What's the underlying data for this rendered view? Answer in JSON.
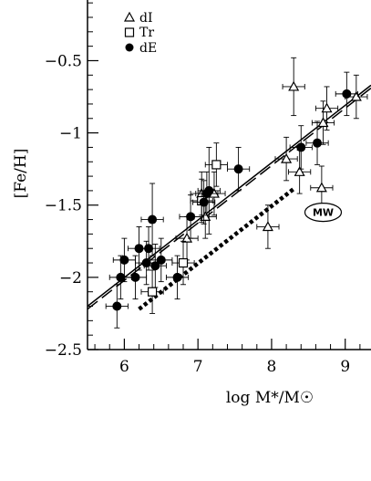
{
  "chart_data": {
    "type": "scatter",
    "xlabel": "log M*/M☉",
    "ylabel": "[Fe/H]",
    "xlim": [
      5.5,
      9.35
    ],
    "ylim": [
      -2.5,
      -0.08
    ],
    "x_ticks": [
      6,
      7,
      8,
      9
    ],
    "x_tick_labels": [
      "6",
      "7",
      "8",
      "9"
    ],
    "y_ticks": [
      -0.5,
      -1,
      -1.5,
      -2,
      -2.5
    ],
    "y_tick_labels": [
      "−0.5",
      "−1",
      "−1.5",
      "−2",
      "−2.5"
    ],
    "legend": {
      "placement": "top-left",
      "entries": [
        {
          "label": "dI",
          "marker": "triangle"
        },
        {
          "label": "Tr",
          "marker": "square"
        },
        {
          "label": "dE",
          "marker": "filled-circle"
        }
      ]
    },
    "series": [
      {
        "name": "dI",
        "marker": "triangle",
        "points": [
          {
            "x": 7.05,
            "y": -1.42,
            "xerr": 0.15,
            "yerr": 0.15
          },
          {
            "x": 7.1,
            "y": -1.58,
            "xerr": 0.15,
            "yerr": 0.15
          },
          {
            "x": 7.22,
            "y": -1.42,
            "xerr": 0.15,
            "yerr": 0.15
          },
          {
            "x": 6.85,
            "y": -1.73,
            "xerr": 0.15,
            "yerr": 0.15
          },
          {
            "x": 7.95,
            "y": -1.65,
            "xerr": 0.15,
            "yerr": 0.15
          },
          {
            "x": 8.2,
            "y": -1.18,
            "xerr": 0.15,
            "yerr": 0.15
          },
          {
            "x": 8.3,
            "y": -0.68,
            "xerr": 0.15,
            "yerr": 0.2
          },
          {
            "x": 8.38,
            "y": -1.27,
            "xerr": 0.15,
            "yerr": 0.15
          },
          {
            "x": 8.68,
            "y": -1.38,
            "xerr": 0.15,
            "yerr": 0.15
          },
          {
            "x": 8.7,
            "y": -0.93,
            "xerr": 0.15,
            "yerr": 0.15
          },
          {
            "x": 8.75,
            "y": -0.83,
            "xerr": 0.15,
            "yerr": 0.15
          },
          {
            "x": 9.15,
            "y": -0.75,
            "xerr": 0.15,
            "yerr": 0.15
          }
        ]
      },
      {
        "name": "Tr",
        "marker": "square",
        "points": [
          {
            "x": 6.38,
            "y": -2.1,
            "xerr": 0.15,
            "yerr": 0.15
          },
          {
            "x": 6.8,
            "y": -1.9,
            "xerr": 0.15,
            "yerr": 0.15
          },
          {
            "x": 7.05,
            "y": -1.47,
            "xerr": 0.15,
            "yerr": 0.15
          },
          {
            "x": 7.25,
            "y": -1.22,
            "xerr": 0.15,
            "yerr": 0.15
          }
        ]
      },
      {
        "name": "dE",
        "marker": "filled-circle",
        "points": [
          {
            "x": 5.9,
            "y": -2.2,
            "xerr": 0.15,
            "yerr": 0.15
          },
          {
            "x": 5.95,
            "y": -2.0,
            "xerr": 0.15,
            "yerr": 0.15
          },
          {
            "x": 6.0,
            "y": -1.88,
            "xerr": 0.15,
            "yerr": 0.15
          },
          {
            "x": 6.15,
            "y": -2.0,
            "xerr": 0.15,
            "yerr": 0.15
          },
          {
            "x": 6.2,
            "y": -1.8,
            "xerr": 0.15,
            "yerr": 0.15
          },
          {
            "x": 6.3,
            "y": -1.9,
            "xerr": 0.15,
            "yerr": 0.15
          },
          {
            "x": 6.33,
            "y": -1.8,
            "xerr": 0.15,
            "yerr": 0.15
          },
          {
            "x": 6.38,
            "y": -1.6,
            "xerr": 0.15,
            "yerr": 0.25
          },
          {
            "x": 6.42,
            "y": -1.92,
            "xerr": 0.15,
            "yerr": 0.15
          },
          {
            "x": 6.5,
            "y": -1.88,
            "xerr": 0.15,
            "yerr": 0.15
          },
          {
            "x": 6.72,
            "y": -2.0,
            "xerr": 0.15,
            "yerr": 0.15
          },
          {
            "x": 6.9,
            "y": -1.58,
            "xerr": 0.15,
            "yerr": 0.15
          },
          {
            "x": 7.08,
            "y": -1.48,
            "xerr": 0.15,
            "yerr": 0.15
          },
          {
            "x": 7.12,
            "y": -1.42,
            "xerr": 0.15,
            "yerr": 0.15
          },
          {
            "x": 7.15,
            "y": -1.4,
            "xerr": 0.15,
            "yerr": 0.3
          },
          {
            "x": 7.55,
            "y": -1.25,
            "xerr": 0.15,
            "yerr": 0.15
          },
          {
            "x": 8.4,
            "y": -1.1,
            "xerr": 0.15,
            "yerr": 0.15
          },
          {
            "x": 8.62,
            "y": -1.07,
            "xerr": 0.15,
            "yerr": 0.15
          },
          {
            "x": 9.02,
            "y": -0.73,
            "xerr": 0.15,
            "yerr": 0.15
          }
        ]
      }
    ],
    "fits": [
      {
        "style": "solid",
        "x": [
          5.5,
          9.35
        ],
        "y": [
          -2.2,
          -0.67
        ]
      },
      {
        "style": "dashed",
        "x": [
          5.5,
          9.35
        ],
        "y": [
          -2.22,
          -0.69
        ]
      },
      {
        "style": "dotted",
        "x": [
          6.2,
          8.32
        ],
        "y": [
          -2.22,
          -1.38
        ]
      }
    ],
    "annotations": [
      {
        "text": "MW",
        "x": 8.7,
        "y": -1.55,
        "shape": "ellipse"
      }
    ]
  }
}
